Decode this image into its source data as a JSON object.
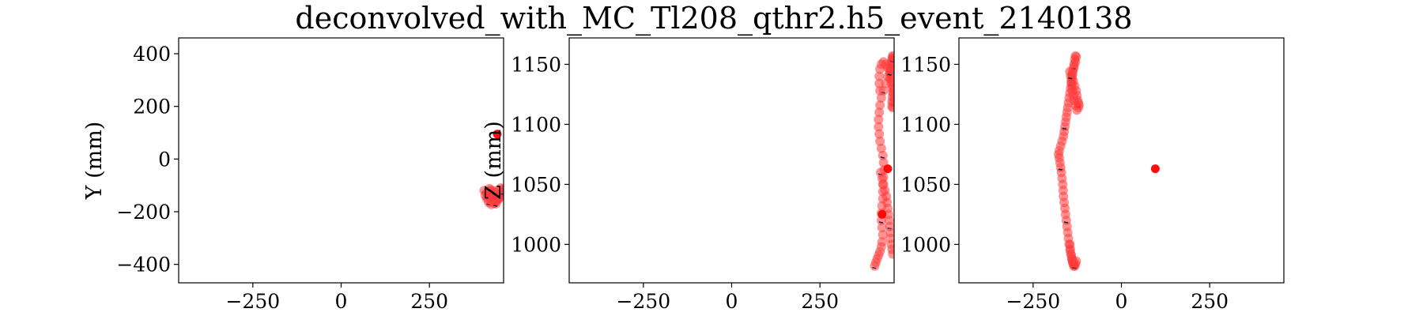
{
  "title": "deconvolved_with_MC_Tl208_qthr2.h5_event_2140138",
  "chart_data": [
    {
      "type": "scatter",
      "ylabel": "Y (mm)",
      "xlim": [
        -460,
        460
      ],
      "ylim": [
        -470,
        460
      ],
      "xticks": [
        -250,
        0,
        250
      ],
      "xtick_labels": [
        "−250",
        "0",
        "250"
      ],
      "yticks": [
        400,
        200,
        0,
        -200,
        -400
      ],
      "ytick_labels": [
        "400",
        "200",
        "0",
        "−200",
        "−400"
      ],
      "grid": false,
      "series": [
        {
          "x": [
            405,
            412,
            418,
            425,
            430,
            435,
            440,
            446,
            452,
            458,
            462,
            466,
            462,
            455,
            448,
            440,
            432,
            425,
            418,
            412,
            408,
            415,
            422,
            428,
            435,
            442,
            450,
            456,
            460,
            452,
            444,
            436,
            428,
            420,
            414,
            426,
            438
          ],
          "y": [
            -120,
            -128,
            -135,
            -140,
            -148,
            -155,
            -160,
            -152,
            -140,
            -128,
            -118,
            -110,
            -122,
            -132,
            -145,
            -158,
            -168,
            -172,
            -165,
            -150,
            -138,
            -125,
            -118,
            -130,
            -142,
            -150,
            -135,
            -125,
            -115,
            -110,
            -118,
            -128,
            -120,
            -112,
            -145,
            -160,
            -170
          ]
        },
        {
          "x": [
            442
          ],
          "y": [
            95
          ]
        }
      ]
    },
    {
      "type": "scatter",
      "ylabel": "Z (mm)",
      "xlim": [
        -460,
        460
      ],
      "ylim": [
        968,
        1172
      ],
      "xticks": [
        -250,
        0,
        250
      ],
      "xtick_labels": [
        "−250",
        "0",
        "250"
      ],
      "yticks": [
        1150,
        1100,
        1050,
        1000
      ],
      "ytick_labels": [
        "1150",
        "1100",
        "1050",
        "1000"
      ],
      "grid": false,
      "series": [
        {
          "x": [
            405,
            408,
            412,
            416,
            420,
            424,
            426,
            428,
            426,
            424,
            424,
            426,
            428,
            428,
            428,
            430,
            432,
            430,
            428,
            424,
            420,
            418,
            416,
            416,
            418,
            420,
            424,
            430,
            436,
            442,
            448,
            452,
            454,
            455,
            456,
            456,
            456,
            455,
            452,
            450,
            448,
            452,
            456,
            458,
            460,
            458,
            456,
            454,
            454,
            455,
            456,
            458,
            456,
            452,
            448,
            442,
            436,
            430,
            424,
            420,
            418,
            418,
            420,
            422,
            426,
            430,
            434,
            438,
            440,
            442,
            444,
            446,
            448,
            450,
            450,
            452,
            454,
            456
          ],
          "y": [
            982,
            985,
            988,
            991,
            994,
            998,
            1002,
            1008,
            1014,
            1020,
            1026,
            1032,
            1038,
            1044,
            1050,
            1056,
            1062,
            1068,
            1074,
            1080,
            1086,
            1092,
            1098,
            1104,
            1110,
            1116,
            1122,
            1128,
            1134,
            1140,
            1146,
            1150,
            1153,
            1155,
            1157,
            1156,
            1154,
            1150,
            1146,
            1142,
            1138,
            1134,
            1130,
            1126,
            1122,
            1118,
            1114,
            1115,
            1119,
            1123,
            1127,
            1131,
            1135,
            1139,
            1143,
            1147,
            1150,
            1152,
            1150,
            1146,
            1140,
            1134,
            1128,
            1060,
            1055,
            1050,
            1045,
            1040,
            1035,
            1030,
            1025,
            1020,
            1015,
            1010,
            1005,
            1000,
            996,
            992
          ]
        },
        {
          "x": [
            442,
            426
          ],
          "y": [
            1063,
            1025
          ]
        }
      ]
    },
    {
      "type": "scatter",
      "ylabel": "",
      "xlim": [
        -460,
        460
      ],
      "ylim": [
        968,
        1172
      ],
      "xticks": [
        -250,
        0,
        250
      ],
      "xtick_labels": [
        "−250",
        "0",
        "250"
      ],
      "yticks": [
        1150,
        1100,
        1050,
        1000
      ],
      "ytick_labels": [
        "1150",
        "1100",
        "1050",
        "1000"
      ],
      "grid": false,
      "series": [
        {
          "x": [
            -135,
            -138,
            -140,
            -142,
            -145,
            -148,
            -150,
            -152,
            -154,
            -156,
            -158,
            -160,
            -162,
            -164,
            -165,
            -166,
            -168,
            -170,
            -172,
            -174,
            -176,
            -178,
            -176,
            -172,
            -168,
            -164,
            -162,
            -160,
            -158,
            -156,
            -154,
            -152,
            -150,
            -148,
            -146,
            -144,
            -142,
            -140,
            -138,
            -136,
            -134,
            -132,
            -130,
            -128,
            -130,
            -134,
            -138,
            -140,
            -136,
            -132,
            -128,
            -126,
            -124,
            -122,
            -120,
            -122,
            -126,
            -130,
            -134,
            -136,
            -138,
            -140,
            -142,
            -144,
            -146,
            -146,
            -145,
            -143,
            -140,
            -138,
            -136,
            -134,
            -132,
            -130,
            -128
          ],
          "y": [
            982,
            985,
            988,
            991,
            995,
            1000,
            1005,
            1010,
            1015,
            1020,
            1025,
            1030,
            1035,
            1040,
            1045,
            1050,
            1055,
            1060,
            1064,
            1068,
            1072,
            1075,
            1078,
            1082,
            1086,
            1090,
            1094,
            1098,
            1102,
            1106,
            1110,
            1114,
            1118,
            1122,
            1126,
            1130,
            1134,
            1138,
            1142,
            1146,
            1150,
            1154,
            1157,
            1156,
            1152,
            1148,
            1144,
            1140,
            1136,
            1132,
            1128,
            1124,
            1120,
            1118,
            1116,
            1114,
            1112,
            1116,
            1120,
            1124,
            1128,
            1132,
            1136,
            1140,
            1144,
            1000,
            996,
            992,
            988,
            986,
            984,
            983,
            982,
            984,
            986
          ]
        },
        {
          "x": [
            96
          ],
          "y": [
            1063
          ]
        }
      ]
    }
  ]
}
